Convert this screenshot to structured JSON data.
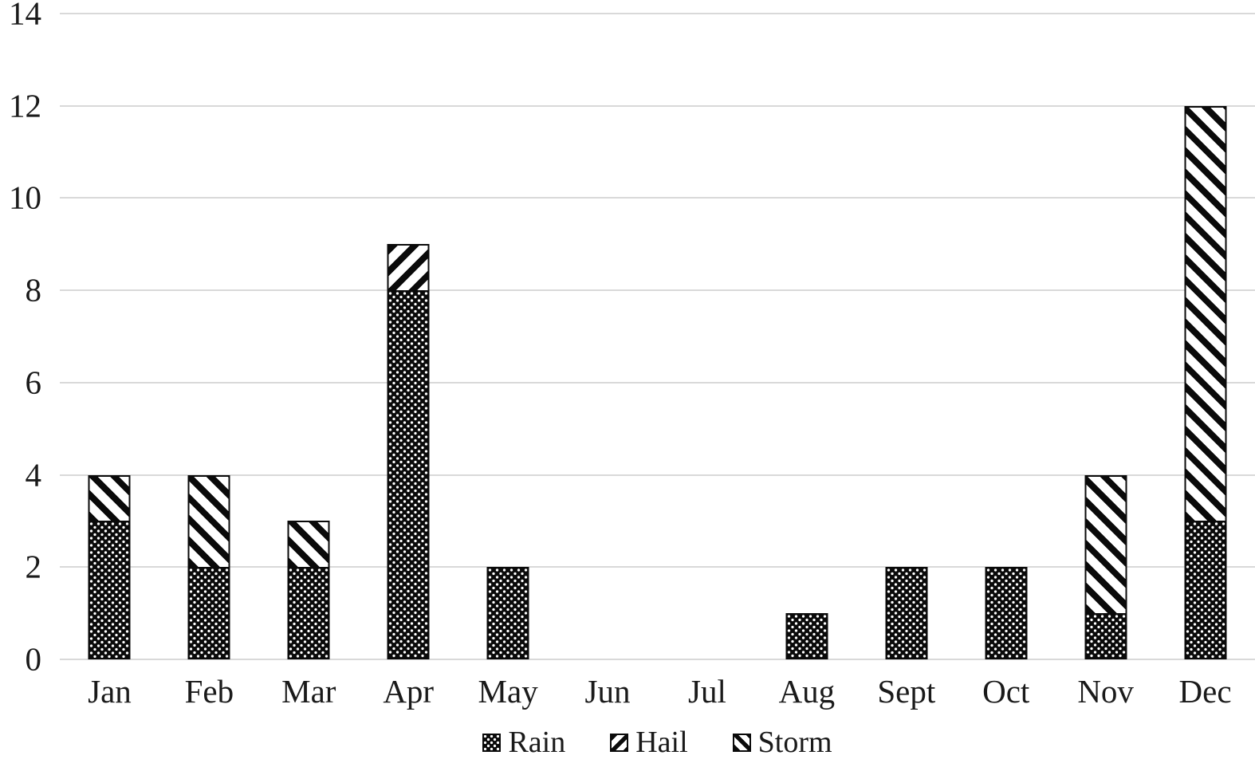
{
  "chart_data": {
    "type": "bar",
    "stacked": true,
    "title": "",
    "xlabel": "",
    "ylabel": "",
    "categories": [
      "Jan",
      "Feb",
      "Mar",
      "Apr",
      "May",
      "Jun",
      "Jul",
      "Aug",
      "Sept",
      "Oct",
      "Nov",
      "Dec"
    ],
    "series": [
      {
        "name": "Rain",
        "pattern": "dots",
        "values": [
          3,
          2,
          2,
          8,
          2,
          0,
          0,
          1,
          2,
          2,
          1,
          3
        ]
      },
      {
        "name": "Hail",
        "pattern": "hail",
        "values": [
          0,
          0,
          0,
          1,
          0,
          0,
          0,
          0,
          0,
          0,
          0,
          0
        ]
      },
      {
        "name": "Storm",
        "pattern": "storm",
        "values": [
          1,
          2,
          1,
          0,
          0,
          0,
          0,
          0,
          0,
          0,
          3,
          9
        ]
      }
    ],
    "totals": [
      4,
      4,
      3,
      9,
      2,
      0,
      0,
      1,
      2,
      2,
      4,
      12
    ],
    "ylim": [
      0,
      14
    ],
    "yticks": [
      0,
      2,
      4,
      6,
      8,
      10,
      12,
      14
    ],
    "grid": true,
    "legend_position": "bottom",
    "colors": {
      "bar_fill": "#0a0a0a",
      "pattern_contrast": "#ffffff",
      "gridline": "#d9d9d9",
      "text": "#1a1a1a",
      "background": "#ffffff"
    }
  }
}
